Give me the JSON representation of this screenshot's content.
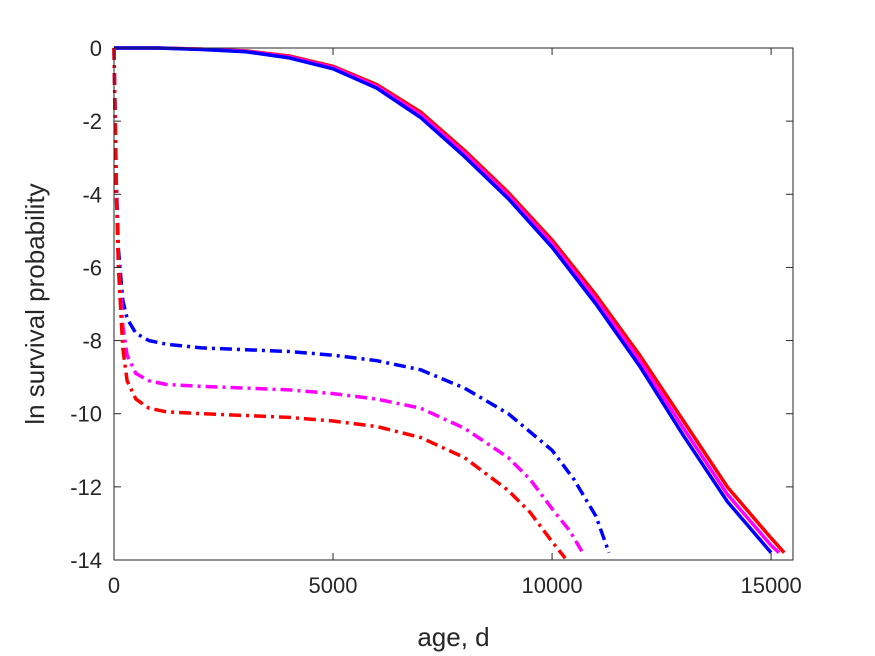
{
  "chart_data": {
    "type": "line",
    "title": "",
    "xlabel": "age, d",
    "ylabel": "ln survival probability",
    "xlim": [
      0,
      15500
    ],
    "ylim": [
      -14,
      0
    ],
    "xticks": [
      0,
      5000,
      10000,
      15000
    ],
    "xtick_labels": [
      "0",
      "5000",
      "10000",
      "15000"
    ],
    "yticks": [
      0,
      -2,
      -4,
      -6,
      -8,
      -10,
      -12,
      -14
    ],
    "ytick_labels": [
      "0",
      "-2",
      "-4",
      "-6",
      "-8",
      "-10",
      "-12",
      "-14"
    ],
    "grid": false,
    "legend": null,
    "series": [
      {
        "color": "#ff0000",
        "style": "solid",
        "x": [
          0,
          1000,
          2000,
          3000,
          4000,
          5000,
          6000,
          7000,
          8000,
          9000,
          10000,
          11000,
          12000,
          13000,
          14000,
          15000,
          15300
        ],
        "y": [
          0,
          0,
          -0.03,
          -0.08,
          -0.22,
          -0.5,
          -1.0,
          -1.75,
          -2.8,
          -3.95,
          -5.25,
          -6.75,
          -8.4,
          -10.2,
          -12.0,
          -13.4,
          -13.8
        ]
      },
      {
        "color": "#ff00ff",
        "style": "solid",
        "x": [
          0,
          1000,
          2000,
          3000,
          4000,
          5000,
          6000,
          7000,
          8000,
          9000,
          10000,
          11000,
          12000,
          13000,
          14000,
          15000,
          15180
        ],
        "y": [
          0,
          0,
          -0.03,
          -0.09,
          -0.24,
          -0.53,
          -1.05,
          -1.82,
          -2.88,
          -4.03,
          -5.35,
          -6.88,
          -8.55,
          -10.4,
          -12.2,
          -13.6,
          -13.8
        ]
      },
      {
        "color": "#0000ff",
        "style": "solid",
        "x": [
          0,
          1000,
          2000,
          3000,
          4000,
          5000,
          6000,
          7000,
          8000,
          9000,
          10000,
          11000,
          12000,
          13000,
          14000,
          15000
        ],
        "y": [
          0,
          0,
          -0.04,
          -0.1,
          -0.27,
          -0.57,
          -1.1,
          -1.9,
          -2.97,
          -4.12,
          -5.45,
          -7.0,
          -8.7,
          -10.6,
          -12.4,
          -13.8
        ]
      },
      {
        "color": "#0000ff",
        "style": "dashdot",
        "x": [
          0,
          50,
          100,
          200,
          300,
          500,
          800,
          1200,
          2000,
          3000,
          4000,
          5000,
          6000,
          7000,
          8000,
          9000,
          10000,
          10500,
          11000,
          11300
        ],
        "y": [
          0,
          -3.5,
          -5.5,
          -6.9,
          -7.4,
          -7.8,
          -8.0,
          -8.1,
          -8.2,
          -8.25,
          -8.3,
          -8.4,
          -8.55,
          -8.8,
          -9.3,
          -10.0,
          -11.0,
          -11.8,
          -12.8,
          -13.8
        ]
      },
      {
        "color": "#ff00ff",
        "style": "dashdot",
        "x": [
          0,
          50,
          100,
          200,
          300,
          500,
          800,
          1200,
          2000,
          3000,
          4000,
          5000,
          6000,
          7000,
          8000,
          9000,
          9500,
          10000,
          10400,
          10700
        ],
        "y": [
          0,
          -3.7,
          -5.8,
          -7.6,
          -8.4,
          -8.9,
          -9.1,
          -9.2,
          -9.25,
          -9.3,
          -9.35,
          -9.45,
          -9.6,
          -9.85,
          -10.4,
          -11.2,
          -11.8,
          -12.6,
          -13.2,
          -13.8
        ]
      },
      {
        "color": "#ff0000",
        "style": "dashdot",
        "x": [
          0,
          50,
          100,
          200,
          300,
          500,
          800,
          1200,
          2000,
          3000,
          4000,
          5000,
          6000,
          7000,
          8000,
          9000,
          9500,
          10000,
          10300
        ],
        "y": [
          0,
          -3.8,
          -6.0,
          -8.2,
          -9.1,
          -9.6,
          -9.85,
          -9.95,
          -10.0,
          -10.05,
          -10.1,
          -10.2,
          -10.35,
          -10.65,
          -11.2,
          -12.1,
          -12.7,
          -13.5,
          -13.95
        ]
      }
    ]
  }
}
